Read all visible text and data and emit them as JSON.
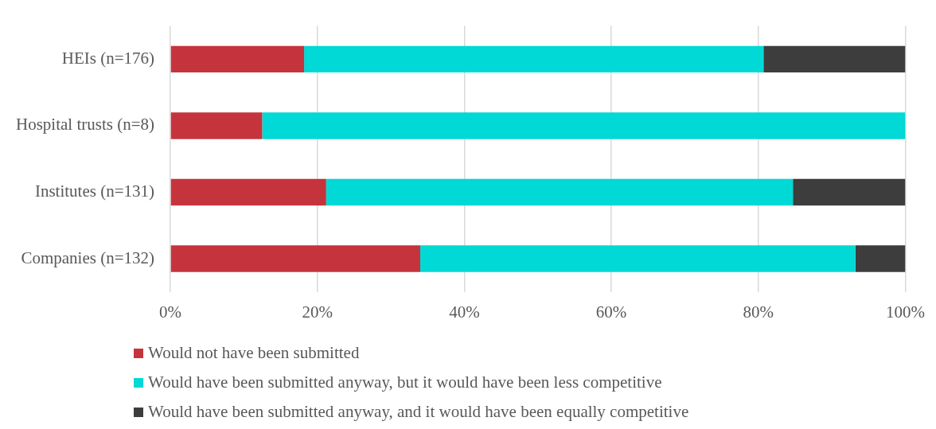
{
  "chart_data": {
    "type": "bar",
    "orientation": "horizontal",
    "stacked": true,
    "categories": [
      "HEIs (n=176)",
      "Hospital trusts (n=8)",
      "Institutes (n=131)",
      "Companies (n=132)"
    ],
    "series": [
      {
        "name": "Would not have been submitted",
        "color": "#c5343d",
        "values": [
          18.2,
          12.5,
          21.2,
          34.0
        ]
      },
      {
        "name": "Would have been submitted anyway, but it would have been less competitive",
        "color": "#00d9d5",
        "values": [
          62.5,
          87.5,
          63.5,
          59.2
        ]
      },
      {
        "name": "Would have been submitted anyway, and it would have been equally competitive",
        "color": "#3d3d3d",
        "values": [
          19.3,
          0,
          15.3,
          6.8
        ]
      }
    ],
    "xlim": [
      0,
      100
    ],
    "xticks": [
      {
        "value": 0,
        "label": "0%"
      },
      {
        "value": 20,
        "label": "20%"
      },
      {
        "value": 40,
        "label": "40%"
      },
      {
        "value": 60,
        "label": "60%"
      },
      {
        "value": 80,
        "label": "80%"
      },
      {
        "value": 100,
        "label": "100%"
      }
    ],
    "grid": "x",
    "legend": "bottom"
  }
}
